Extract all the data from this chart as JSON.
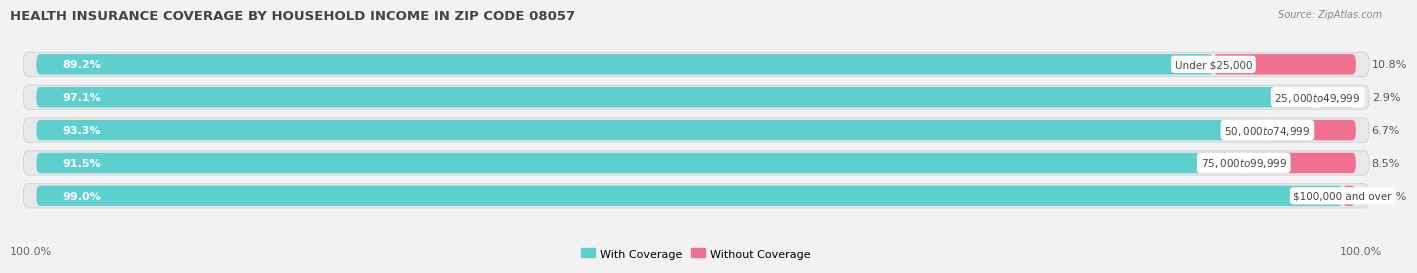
{
  "title": "HEALTH INSURANCE COVERAGE BY HOUSEHOLD INCOME IN ZIP CODE 08057",
  "source": "Source: ZipAtlas.com",
  "categories": [
    "Under $25,000",
    "$25,000 to $49,999",
    "$50,000 to $74,999",
    "$75,000 to $99,999",
    "$100,000 and over"
  ],
  "with_coverage": [
    89.2,
    97.1,
    93.3,
    91.5,
    99.0
  ],
  "without_coverage": [
    10.8,
    2.9,
    6.7,
    8.5,
    0.96
  ],
  "color_with": "#5ecfcf",
  "color_without": "#f07090",
  "row_bg_color": "#e8e8e8",
  "fig_bg_color": "#f2f2f2",
  "title_fontsize": 9.5,
  "bar_label_fontsize": 8,
  "cat_label_fontsize": 7.5,
  "pct_label_fontsize": 8,
  "legend_fontsize": 8,
  "source_fontsize": 7,
  "footer_fontsize": 8,
  "left_label": "100.0%",
  "right_label": "100.0%"
}
